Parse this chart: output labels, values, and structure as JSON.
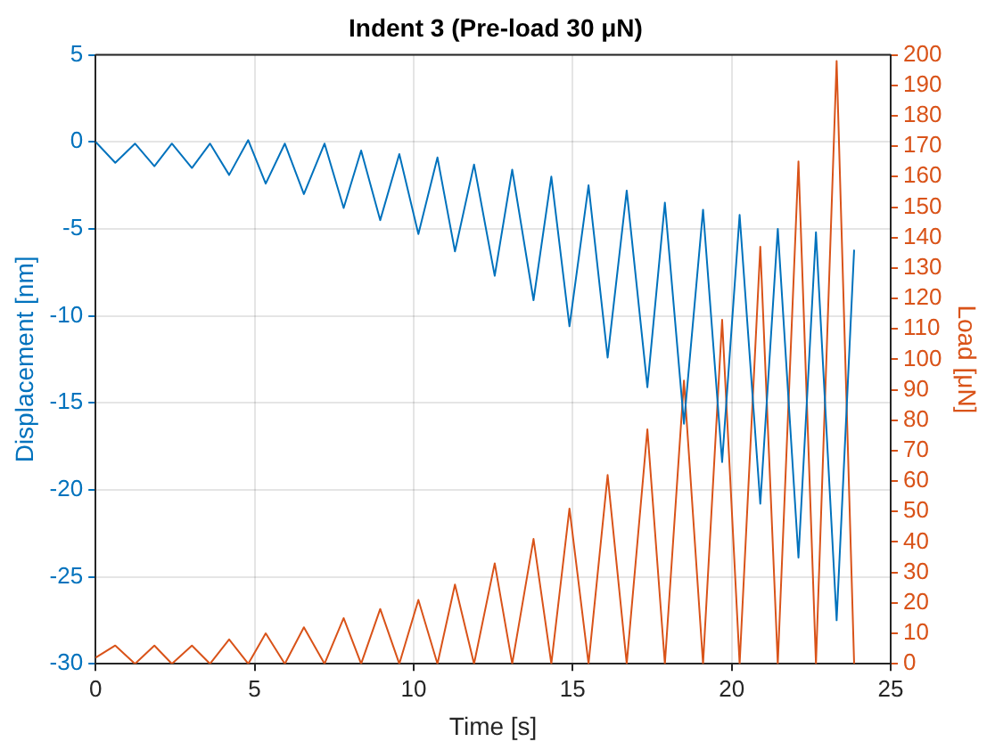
{
  "chart_data": {
    "type": "line",
    "title": "Indent 3 (Pre-load 30 μN)",
    "xlabel": "Time [s]",
    "ylabel": "Displacement [nm]",
    "y2label": "Load [μN]",
    "xlim": [
      0,
      25
    ],
    "xticks": [
      0,
      5,
      10,
      15,
      20,
      25
    ],
    "ylim": [
      -30,
      5
    ],
    "yticks": [
      -30,
      -25,
      -20,
      -15,
      -10,
      -5,
      0,
      5
    ],
    "y2lim": [
      0,
      200
    ],
    "y2ticks": [
      0,
      10,
      20,
      30,
      40,
      50,
      60,
      70,
      80,
      90,
      100,
      110,
      120,
      130,
      140,
      150,
      160,
      170,
      180,
      190,
      200
    ],
    "grid": true,
    "legend": false,
    "marker": "none",
    "line_style": "solid",
    "series": [
      {
        "color": "#0072bd",
        "x": [
          0,
          0.62,
          1.24,
          1.85,
          2.4,
          3.03,
          3.6,
          4.2,
          4.8,
          5.35,
          5.95,
          6.55,
          7.2,
          7.8,
          8.35,
          8.95,
          9.55,
          10.15,
          10.75,
          11.3,
          11.9,
          12.55,
          13.1,
          13.77,
          14.33,
          14.9,
          15.5,
          16.1,
          16.7,
          17.35,
          17.9,
          18.5,
          19.1,
          19.7,
          20.25,
          20.9,
          21.45,
          22.1,
          22.65,
          23.3,
          23.85
        ],
        "values": [
          0,
          -1.2,
          -0.1,
          -1.4,
          -0.1,
          -1.5,
          -0.1,
          -1.9,
          0.1,
          -2.4,
          -0.1,
          -3,
          -0.1,
          -3.8,
          -0.5,
          -4.5,
          -0.7,
          -5.3,
          -0.9,
          -6.3,
          -1.3,
          -7.7,
          -1.6,
          -9.1,
          -2,
          -10.6,
          -2.5,
          -12.4,
          -2.8,
          -14.1,
          -3.5,
          -16.2,
          -3.9,
          -18.4,
          -4.2,
          -20.8,
          -5,
          -23.9,
          -5.2,
          -27.5,
          -6.2
        ]
      },
      {
        "color": "#d95319",
        "axis": "y2",
        "x": [
          0,
          0.62,
          1.24,
          1.85,
          2.4,
          3.03,
          3.6,
          4.2,
          4.8,
          5.35,
          5.95,
          6.55,
          7.2,
          7.8,
          8.35,
          8.95,
          9.55,
          10.15,
          10.75,
          11.3,
          11.9,
          12.55,
          13.1,
          13.77,
          14.33,
          14.9,
          15.5,
          16.1,
          16.7,
          17.35,
          17.9,
          18.5,
          19.1,
          19.7,
          20.25,
          20.9,
          21.45,
          22.1,
          22.65,
          23.3,
          23.85
        ],
        "values": [
          2,
          6,
          0,
          6,
          0,
          6,
          0,
          8,
          0,
          10,
          0,
          12,
          0,
          15,
          0,
          18,
          0,
          21,
          0,
          26,
          0,
          33,
          0,
          41,
          0,
          51,
          0,
          62,
          0,
          77,
          0,
          93,
          0,
          113,
          0,
          137,
          0,
          165,
          0,
          198,
          0
        ]
      }
    ]
  }
}
